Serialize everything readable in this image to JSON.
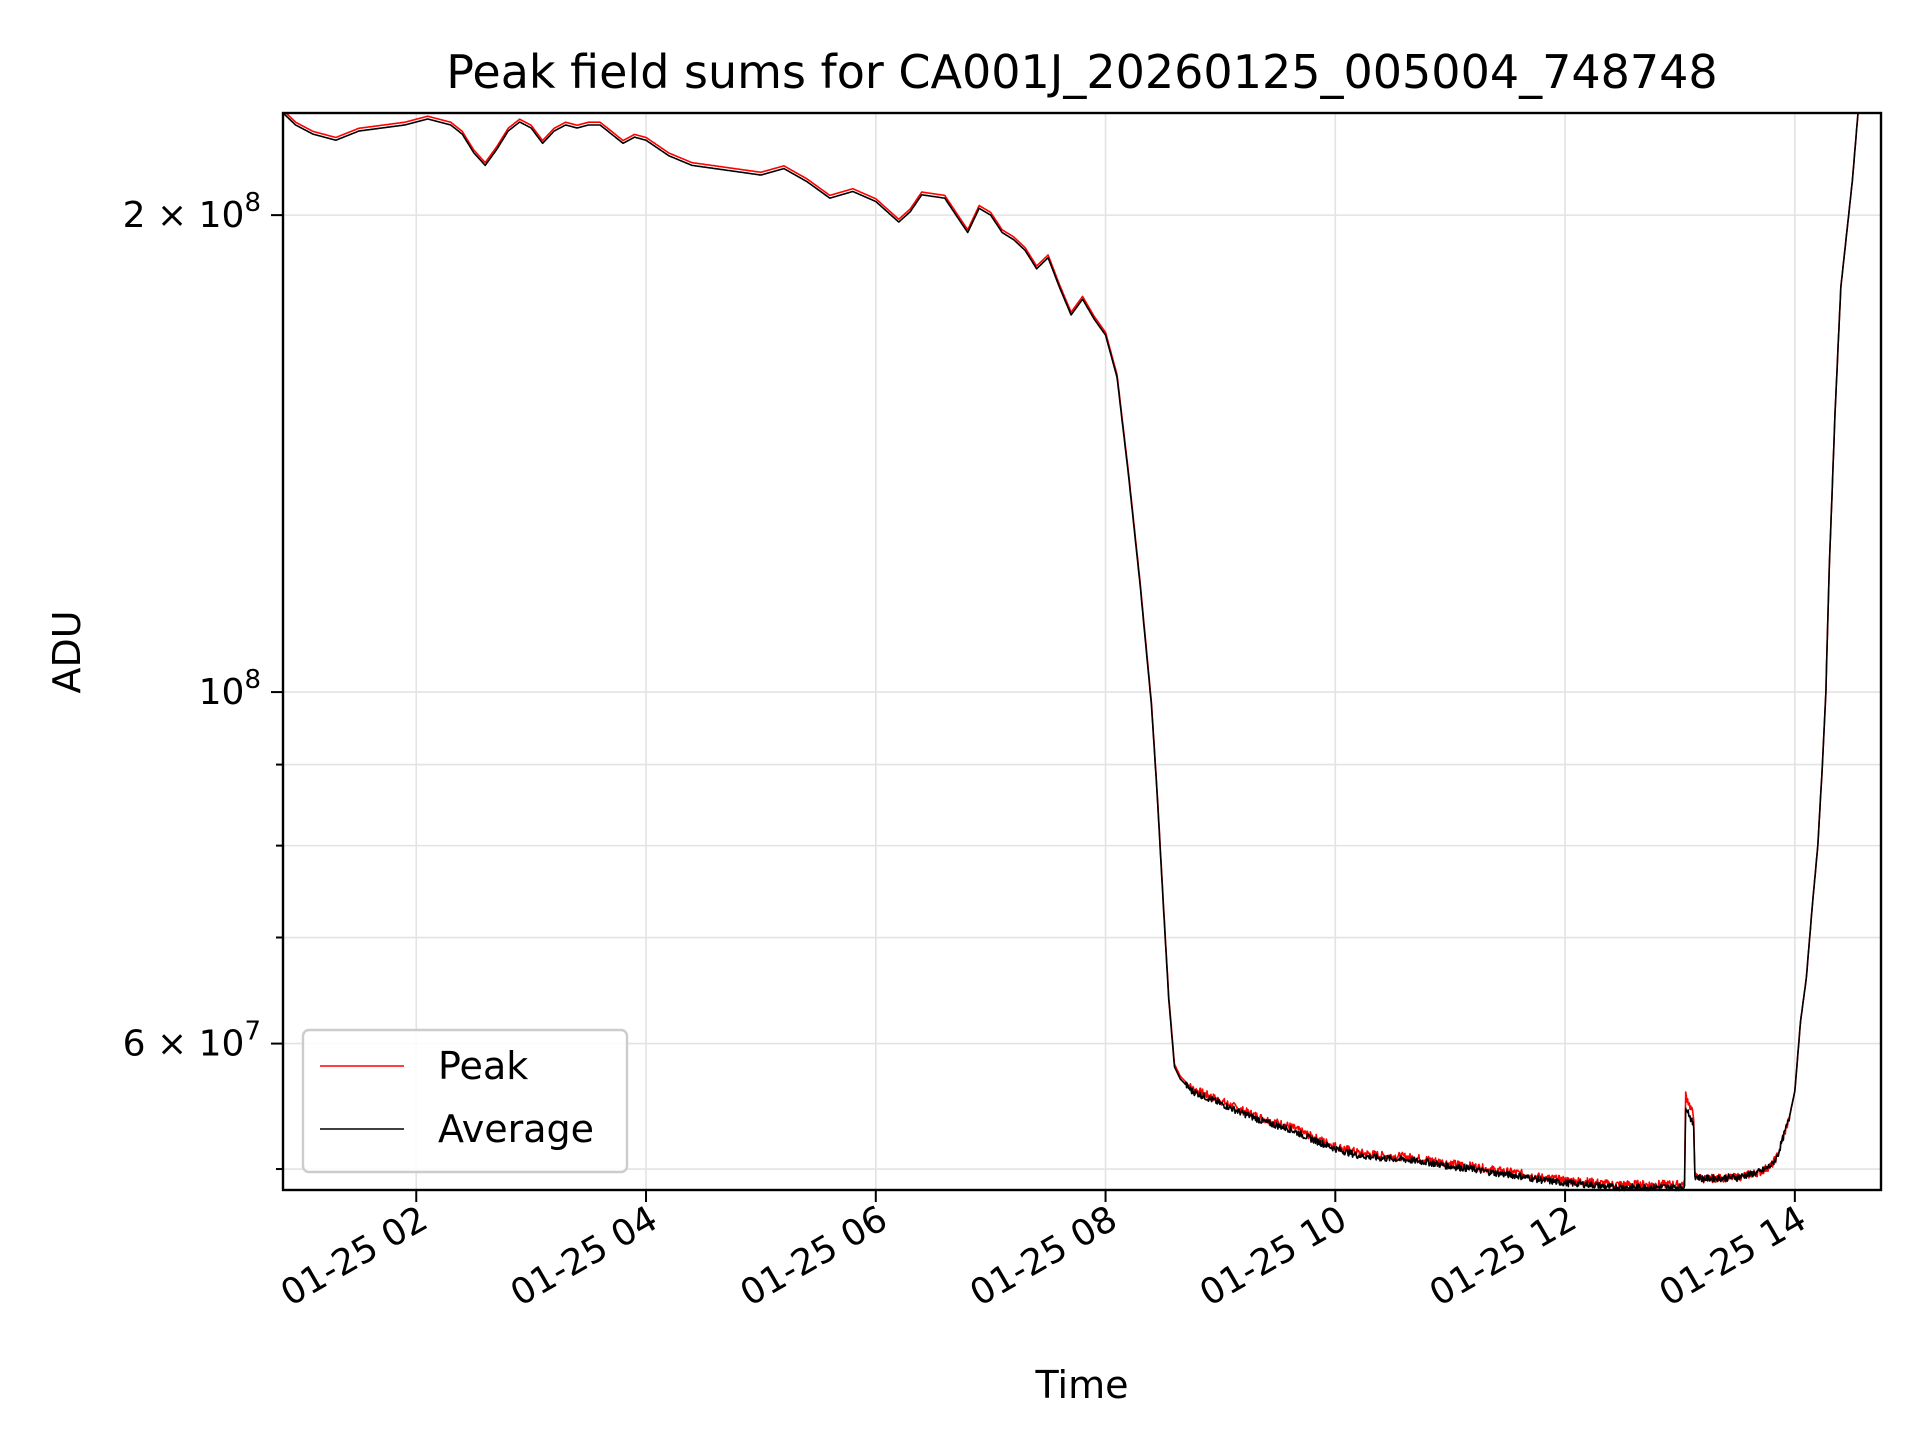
{
  "chart_data": {
    "type": "line",
    "title": "Peak field sums for CA001J_20260125_005004_748748",
    "xlabel": "Time",
    "ylabel": "ADU",
    "yscale": "log",
    "xlim": [
      0.84,
      14.75
    ],
    "ylim": [
      48500000,
      232000000
    ],
    "grid": true,
    "legend_position": "lower-left",
    "x_ticks": [
      {
        "value": 2,
        "label": "01-25 02"
      },
      {
        "value": 4,
        "label": "01-25 04"
      },
      {
        "value": 6,
        "label": "01-25 06"
      },
      {
        "value": 8,
        "label": "01-25 08"
      },
      {
        "value": 10,
        "label": "01-25 10"
      },
      {
        "value": 12,
        "label": "01-25 12"
      },
      {
        "value": 14,
        "label": "01-25 14"
      }
    ],
    "y_major_ticks": [
      {
        "value": 60000000,
        "mantissa": "6",
        "times": "×",
        "base": "10",
        "exp": "7"
      },
      {
        "value": 100000000,
        "mantissa": "",
        "times": "",
        "base": "10",
        "exp": "8"
      },
      {
        "value": 200000000,
        "mantissa": "2",
        "times": "×",
        "base": "10",
        "exp": "8"
      }
    ],
    "y_minor_ticks": [
      50000000,
      70000000,
      80000000,
      90000000
    ],
    "series": [
      {
        "name": "Peak",
        "color": "#ff0000",
        "x": [
          13.0,
          13.04,
          13.05,
          13.12,
          13.13,
          13.2,
          13.5,
          13.7,
          13.8,
          13.85,
          13.9,
          13.95,
          14.0,
          14.05,
          14.1,
          14.15,
          14.2,
          14.24,
          14.27,
          14.3,
          14.35,
          14.4,
          14.5,
          14.55
        ],
        "y": [
          49400000,
          49500000,
          55700000,
          54000000,
          49500000,
          49300000,
          49400000,
          49800000,
          50300000,
          51000000,
          52400000,
          53800000,
          56000000,
          62000000,
          66000000,
          73000000,
          80000000,
          90000000,
          100000000,
          120000000,
          150000000,
          180000000,
          210000000,
          232000000
        ],
        "noise_amplitude": 0.006
      },
      {
        "name": "Average",
        "color": "#000000",
        "x": [
          0.84,
          0.95,
          1.1,
          1.3,
          1.5,
          1.7,
          1.9,
          2.1,
          2.3,
          2.4,
          2.5,
          2.6,
          2.7,
          2.8,
          2.9,
          3.0,
          3.1,
          3.2,
          3.3,
          3.4,
          3.5,
          3.6,
          3.7,
          3.8,
          3.9,
          4.0,
          4.2,
          4.4,
          4.6,
          4.8,
          5.0,
          5.2,
          5.4,
          5.6,
          5.8,
          6.0,
          6.2,
          6.3,
          6.4,
          6.6,
          6.8,
          6.9,
          7.0,
          7.1,
          7.2,
          7.3,
          7.4,
          7.5,
          7.6,
          7.7,
          7.8,
          7.9,
          8.0,
          8.1,
          8.2,
          8.3,
          8.4,
          8.45,
          8.5,
          8.55,
          8.6,
          8.65,
          8.7,
          8.75,
          8.8,
          8.9,
          9.0,
          9.2,
          9.4,
          9.6,
          9.8,
          10.0,
          10.2,
          10.4,
          10.6,
          10.8,
          11.0,
          11.2,
          11.4,
          11.6,
          11.8,
          12.0,
          12.2,
          12.4,
          12.6,
          12.8,
          13.0,
          13.04
        ],
        "y": [
          232000000,
          228000000,
          225000000,
          223000000,
          226000000,
          227000000,
          228000000,
          230000000,
          228000000,
          225000000,
          219000000,
          215000000,
          220000000,
          226000000,
          229000000,
          227000000,
          222000000,
          226000000,
          228000000,
          227000000,
          228000000,
          228000000,
          225000000,
          222000000,
          224000000,
          223000000,
          218000000,
          215000000,
          214000000,
          213000000,
          212000000,
          214000000,
          210000000,
          205000000,
          207000000,
          204000000,
          198000000,
          201000000,
          206000000,
          205000000,
          195000000,
          202000000,
          200000000,
          195000000,
          193000000,
          190000000,
          185000000,
          188000000,
          180000000,
          173000000,
          177000000,
          172000000,
          168000000,
          158000000,
          137000000,
          117000000,
          98000000,
          86000000,
          74000000,
          64000000,
          58000000,
          57000000,
          56500000,
          56000000,
          55800000,
          55400000,
          55000000,
          54200000,
          53500000,
          53000000,
          52200000,
          51500000,
          51000000,
          50800000,
          50700000,
          50500000,
          50200000,
          50000000,
          49700000,
          49500000,
          49200000,
          49000000,
          48900000,
          48700000,
          48700000,
          48700000,
          48700000,
          48800000
        ],
        "noise_amplitude": 0.005
      }
    ]
  }
}
